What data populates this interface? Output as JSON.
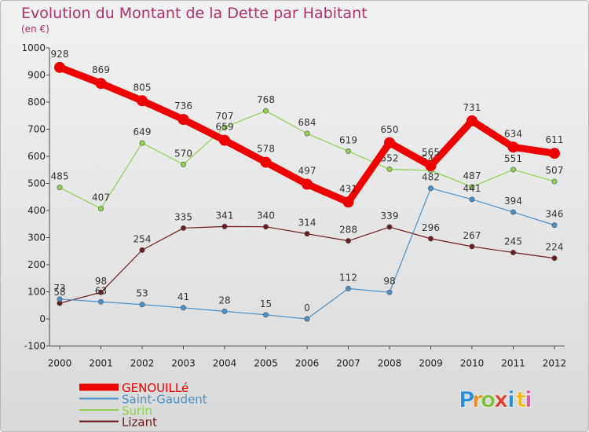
{
  "chart_data": {
    "type": "line",
    "title": "Evolution du Montant de la Dette par Habitant",
    "subtitle": "(en €)",
    "xlabel": "",
    "ylabel": "",
    "categories": [
      "2000",
      "2001",
      "2002",
      "2003",
      "2004",
      "2005",
      "2006",
      "2007",
      "2008",
      "2009",
      "2010",
      "2011",
      "2012"
    ],
    "ylim": [
      -100,
      1000
    ],
    "yticks": [
      -100,
      0,
      100,
      200,
      300,
      400,
      500,
      600,
      700,
      800,
      900,
      1000
    ],
    "grid": false,
    "legend_position": "bottom-left",
    "series": [
      {
        "name": "GENOUILLé",
        "color": "#ee0000",
        "values": [
          928,
          869,
          805,
          736,
          659,
          578,
          497,
          431,
          650,
          565,
          731,
          634,
          611
        ]
      },
      {
        "name": "Saint-Gaudent",
        "color": "#4a90c8",
        "values": [
          73,
          63,
          53,
          41,
          28,
          15,
          0,
          112,
          98,
          482,
          441,
          394,
          346
        ]
      },
      {
        "name": "Surin",
        "color": "#8fd14f",
        "values": [
          485,
          407,
          649,
          570,
          707,
          768,
          684,
          619,
          552,
          548,
          487,
          551,
          507
        ]
      },
      {
        "name": "Lizant",
        "color": "#6b1c1c",
        "values": [
          58,
          98,
          254,
          335,
          341,
          340,
          314,
          288,
          339,
          296,
          267,
          245,
          224
        ]
      }
    ]
  },
  "brand": {
    "letters": [
      "P",
      "r",
      "o",
      "x",
      "i",
      "t",
      "i"
    ],
    "colors": [
      "#2a8fd8",
      "#f08c1a",
      "#7cbf3a",
      "#e03a2a",
      "#2a8fd8",
      "#f0b81a",
      "#e05aa0"
    ]
  }
}
